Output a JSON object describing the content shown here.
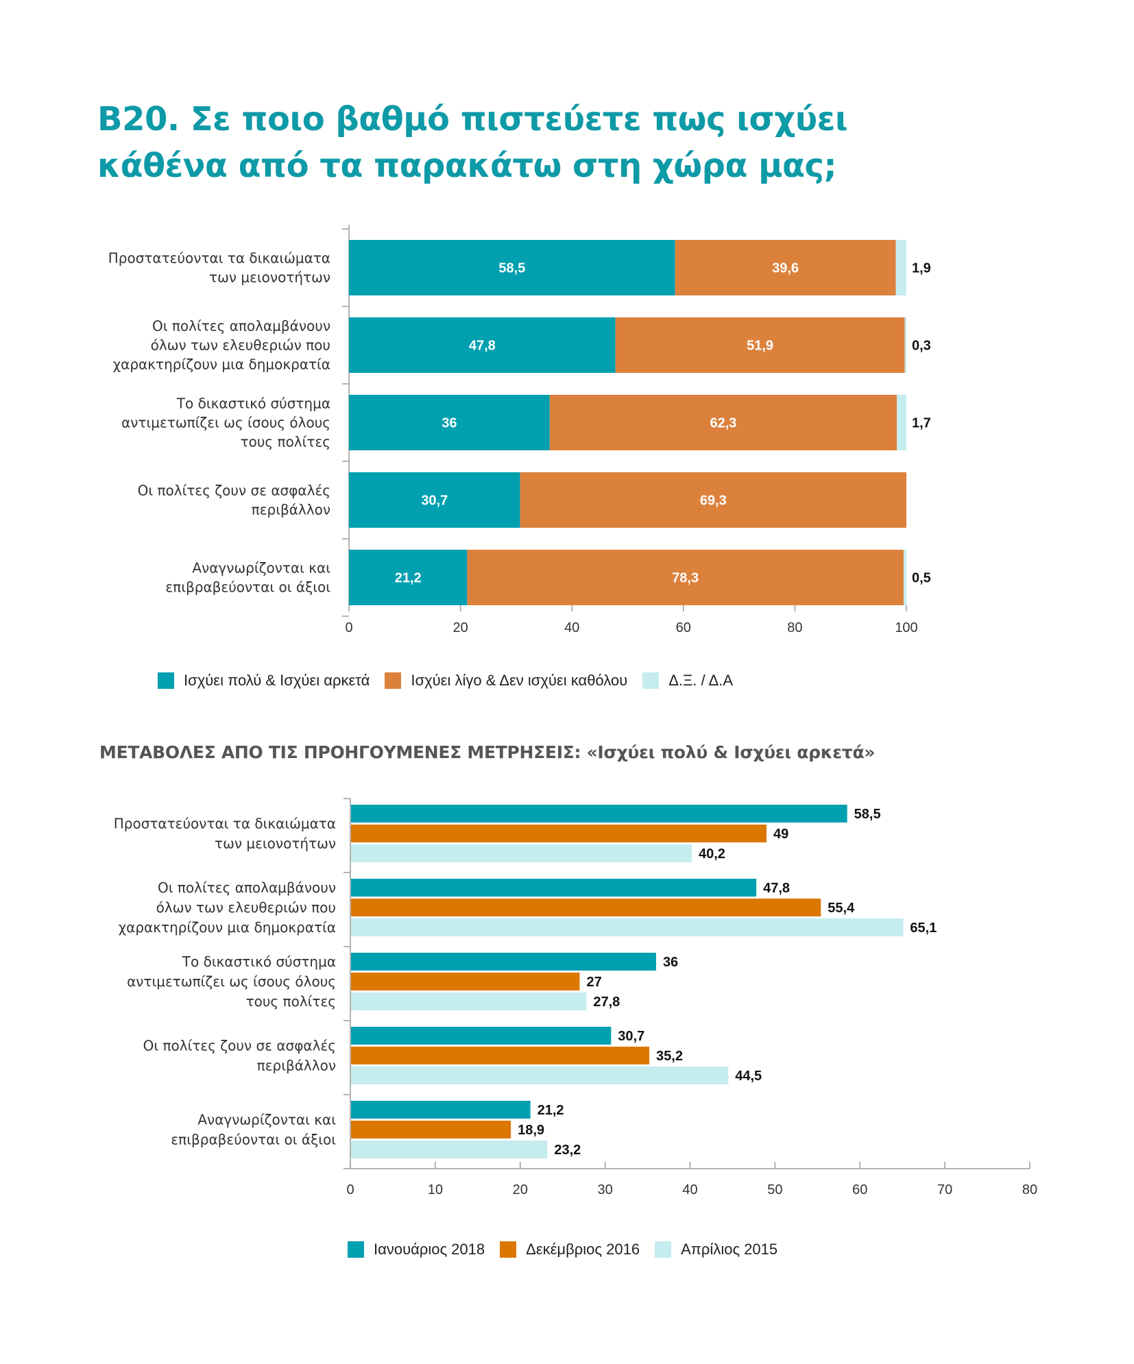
{
  "header": {
    "title_line1": "B20. Σε ποιο βαθμό πιστεύετε πως ισχύει",
    "title_line2": "κάθένα από τα παρακάτω στη χώρα μας;"
  },
  "section2": {
    "title": "ΜΕΤΑΒΟΛΕΣ ΑΠΟ ΤΙΣ ΠΡΟΗΓΟΥΜΕΝΕΣ ΜΕΤΡΗΣΕΙΣ: «Ισχύει πολύ & Ισχύει αρκετά»"
  },
  "colors": {
    "teal": "#00a0b0",
    "orange": "#dc813c",
    "orange_dark": "#dc7700",
    "light": "#c5ecee",
    "axis": "#9a9a9a"
  },
  "chart_data": [
    {
      "type": "bar",
      "orientation": "horizontal",
      "stacked": true,
      "categories": [
        [
          "Προστατεύονται τα δικαιώματα",
          "των μειονοτήτων"
        ],
        [
          "Οι πολίτες απολαμβάνουν",
          "όλων των ελευθεριών που",
          "χαρακτηρίζουν μια δημοκρατία"
        ],
        [
          "Το δικαστικό σύστημα",
          "αντιμετωπίζει ως ίσους όλους",
          "τους πολίτες"
        ],
        [
          "Οι πολίτες ζουν σε ασφαλές",
          "περιβάλλον"
        ],
        [
          "Αναγνωρίζονται και",
          "επιβραβεύονται οι άξιοι"
        ]
      ],
      "series": [
        {
          "name": "Ισχύει πολύ & Ισχύει αρκετά",
          "values": [
            58.5,
            47.8,
            36,
            30.7,
            21.2
          ],
          "labels": [
            "58,5",
            "47,8",
            "36",
            "30,7",
            "21,2"
          ],
          "color": "#00a0b0"
        },
        {
          "name": "Ισχύει λίγο & Δεν ισχύει καθόλου",
          "values": [
            39.6,
            51.9,
            62.3,
            69.3,
            78.3
          ],
          "labels": [
            "39,6",
            "51,9",
            "62,3",
            "69,3",
            "78,3"
          ],
          "color": "#dc813c"
        },
        {
          "name": "Δ.Ξ. / Δ.Α",
          "values": [
            1.9,
            0.3,
            1.7,
            0,
            0.5
          ],
          "labels": [
            "1,9",
            "0,3",
            "1,7",
            "",
            "0,5"
          ],
          "color": "#c5ecee"
        }
      ],
      "xlim": [
        0,
        100
      ],
      "xticks": [
        0,
        20,
        40,
        60,
        80,
        100
      ],
      "legend_position": "bottom"
    },
    {
      "type": "bar",
      "orientation": "horizontal",
      "stacked": false,
      "categories": [
        [
          "Προστατεύονται τα δικαιώματα",
          "των μειονοτήτων"
        ],
        [
          "Οι πολίτες απολαμβάνουν",
          "όλων των ελευθεριών που",
          "χαρακτηρίζουν μια δημοκρατία"
        ],
        [
          "Το δικαστικό σύστημα",
          "αντιμετωπίζει ως ίσους όλους",
          "τους πολίτες"
        ],
        [
          "Οι πολίτες ζουν σε ασφαλές",
          "περιβάλλον"
        ],
        [
          "Αναγνωρίζονται και",
          "επιβραβεύονται οι άξιοι"
        ]
      ],
      "series": [
        {
          "name": "Ιανουάριος 2018",
          "values": [
            58.5,
            47.8,
            36,
            30.7,
            21.2
          ],
          "labels": [
            "58,5",
            "47,8",
            "36",
            "30,7",
            "21,2"
          ],
          "color": "#00a0b0"
        },
        {
          "name": "Δεκέμβριος 2016",
          "values": [
            49,
            55.4,
            27,
            35.2,
            18.9
          ],
          "labels": [
            "49",
            "55,4",
            "27",
            "35,2",
            "18,9"
          ],
          "color": "#dc7700"
        },
        {
          "name": "Απρίλιος 2015",
          "values": [
            40.2,
            65.1,
            27.8,
            44.5,
            23.2
          ],
          "labels": [
            "40,2",
            "65,1",
            "27,8",
            "44,5",
            "23,2"
          ],
          "color": "#c5ecee"
        }
      ],
      "xlim": [
        0,
        80
      ],
      "xticks": [
        0,
        10,
        20,
        30,
        40,
        50,
        60,
        70,
        80
      ],
      "legend_position": "bottom"
    }
  ]
}
